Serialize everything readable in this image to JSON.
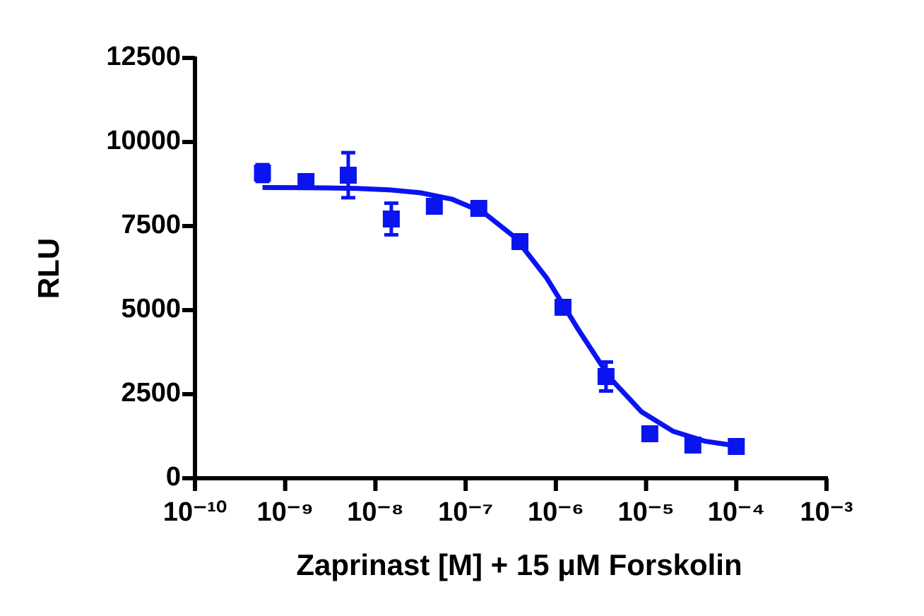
{
  "chart_data": {
    "type": "scatter",
    "x_label": "Zaprinast [M] + 15  μM Forskolin",
    "y_label": "RLU",
    "xscale": "log",
    "xlim": [
      1e-10,
      0.001
    ],
    "xticks": [
      {
        "value": 1e-10,
        "label": "10⁻¹⁰"
      },
      {
        "value": 1e-09,
        "label": "10⁻⁹"
      },
      {
        "value": 1e-08,
        "label": "10⁻⁸"
      },
      {
        "value": 1e-07,
        "label": "10⁻⁷"
      },
      {
        "value": 1e-06,
        "label": "10⁻⁶"
      },
      {
        "value": 1e-05,
        "label": "10⁻⁵"
      },
      {
        "value": 0.0001,
        "label": "10⁻⁴"
      },
      {
        "value": 0.001,
        "label": "10⁻³"
      }
    ],
    "ylim": [
      0,
      12500
    ],
    "yticks": [
      0,
      2500,
      5000,
      7500,
      10000,
      12500
    ],
    "series": [
      {
        "color": "#0a14f0",
        "x": [
          5.6e-10,
          1.7e-09,
          5e-09,
          1.5e-08,
          4.5e-08,
          1.4e-07,
          4e-07,
          1.2e-06,
          3.6e-06,
          1.1e-05,
          3.3e-05,
          0.0001
        ],
        "values": [
          9076,
          8824,
          9012,
          7710,
          8088,
          8025,
          7038,
          5084,
          3025,
          1323,
          987,
          945
        ],
        "errors": [
          250,
          200,
          670,
          470,
          120,
          80,
          150,
          200,
          430,
          100,
          80,
          80
        ]
      }
    ],
    "fit": {
      "color": "#0a14f0",
      "x": [
        5.6e-10,
        1.26e-09,
        2.82e-09,
        6.31e-09,
        1.41e-08,
        3.16e-08,
        7.08e-08,
        1.58e-07,
        3.55e-07,
        7.94e-07,
        1.78e-06,
        3.98e-06,
        8.91e-06,
        2e-05,
        4.47e-05,
        0.0001
      ],
      "values": [
        8647,
        8643,
        8635,
        8617,
        8577,
        8489,
        8299,
        7904,
        7158,
        5948,
        4418,
        2984,
        1974,
        1395,
        1103,
        965
      ]
    }
  }
}
